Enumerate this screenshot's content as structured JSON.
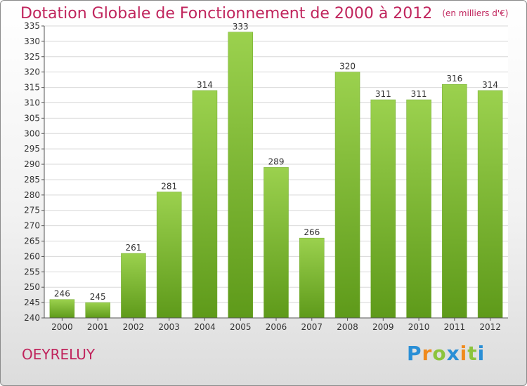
{
  "title": "Dotation Globale de Fonctionnement de 2000 à 2012",
  "subtitle": "(en milliers d'€)",
  "place": "OEYRELUY",
  "logo": {
    "letters": [
      "P",
      "r",
      "o",
      "x",
      "i",
      "t",
      "i"
    ],
    "colors": [
      "#2a8fd6",
      "#f08a1c",
      "#8cc43c",
      "#2a8fd6",
      "#f08a1c",
      "#8cc43c",
      "#2a8fd6"
    ]
  },
  "colors": {
    "title": "#c0245c",
    "bar_top": "#9bd14e",
    "bar_bottom": "#5e9a1a",
    "grid": "#d8d8d8"
  },
  "chart_data": {
    "type": "bar",
    "categories": [
      "2000",
      "2001",
      "2002",
      "2003",
      "2004",
      "2005",
      "2006",
      "2007",
      "2008",
      "2009",
      "2010",
      "2011",
      "2012"
    ],
    "values": [
      246,
      245,
      261,
      281,
      314,
      333,
      289,
      266,
      320,
      311,
      311,
      316,
      314
    ],
    "ylim": [
      240,
      335
    ],
    "ytick_step": 5,
    "grid": true,
    "data_labels": true,
    "title": "Dotation Globale de Fonctionnement de 2000 à 2012",
    "subtitle": "(en milliers d'€)"
  }
}
